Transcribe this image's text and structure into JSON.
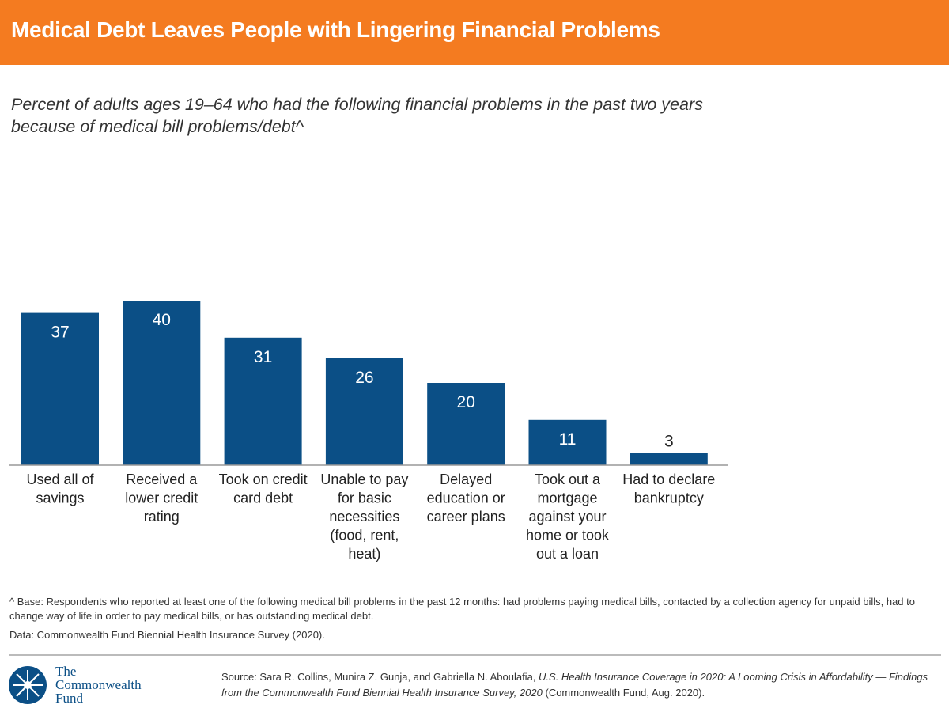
{
  "header": {
    "title": "Medical Debt Leaves People with Lingering Financial Problems"
  },
  "chart_data": {
    "type": "bar",
    "title": "Medical Debt Leaves People with Lingering Financial Problems",
    "subtitle": "Percent of adults ages 19–64 who had the following financial problems in the past two years because of medical bill problems/debt^",
    "categories": [
      [
        "Used all of",
        "savings"
      ],
      [
        "Received a",
        "lower credit",
        "rating"
      ],
      [
        "Took on credit",
        "card debt"
      ],
      [
        "Unable to pay",
        "for basic",
        "necessities",
        "(food, rent,",
        "heat)"
      ],
      [
        "Delayed",
        "education or",
        "career plans"
      ],
      [
        "Took out a",
        "mortgage",
        "against your",
        "home or took",
        "out a loan"
      ],
      [
        "Had to declare",
        "bankruptcy"
      ]
    ],
    "values": [
      37,
      40,
      31,
      26,
      20,
      11,
      3
    ],
    "ylim": [
      0,
      40
    ],
    "xlabel": "",
    "ylabel": "",
    "grid": false,
    "bar_color": "#0b4f86"
  },
  "footer": {
    "note": "^ Base: Respondents who reported at least one of the following medical bill problems in the past 12 months: had problems paying medical bills, contacted by a collection agency for unpaid bills, had to change way of life in order to pay medical bills, or has outstanding medical debt.",
    "data": "Data: Commonwealth Fund Biennial Health Insurance Survey (2020).",
    "source_prefix": "Source: Sara R. Collins, Munira Z. Gunja, and Gabriella N. Aboulafia, ",
    "source_title": "U.S. Health Insurance Coverage in 2020: A Looming Crisis in Affordability — Findings from the Commonwealth Fund Biennial Health Insurance Survey, 2020",
    "source_suffix": " (Commonwealth Fund, Aug. 2020).",
    "logo_lines": [
      "The",
      "Commonwealth",
      "Fund"
    ]
  }
}
